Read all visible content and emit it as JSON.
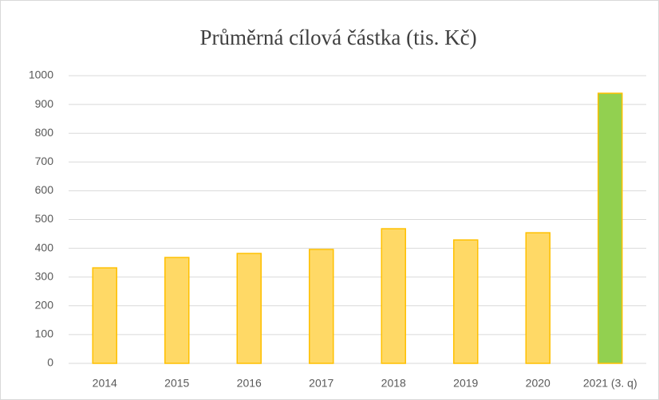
{
  "chart_data": {
    "type": "bar",
    "title": "Průměrná cílová částka (tis. Kč)",
    "categories": [
      "2014",
      "2015",
      "2016",
      "2017",
      "2018",
      "2019",
      "2020",
      "2021 (3. q)"
    ],
    "values": [
      332,
      368,
      382,
      396,
      468,
      429,
      454,
      939
    ],
    "colors": [
      "#ffd966",
      "#ffd966",
      "#ffd966",
      "#ffd966",
      "#ffd966",
      "#ffd966",
      "#ffd966",
      "#92d050"
    ],
    "edgecolor": "#ffc000",
    "ylim": [
      0,
      1000
    ],
    "yticks": [
      0,
      100,
      200,
      300,
      400,
      500,
      600,
      700,
      800,
      900,
      1000
    ],
    "grid": true
  }
}
